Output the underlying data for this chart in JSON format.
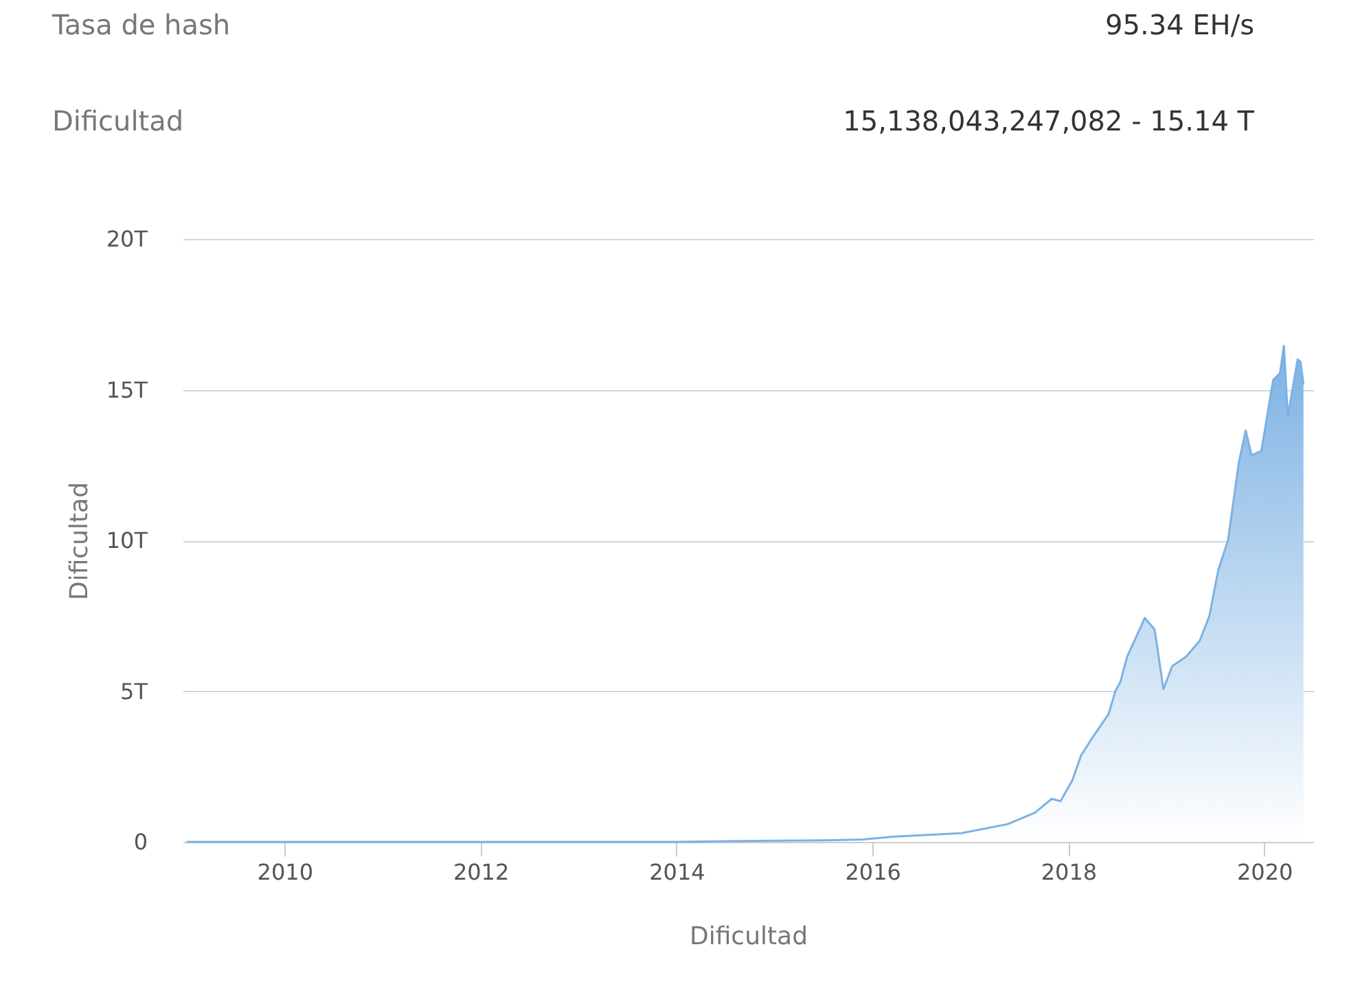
{
  "chart_data": {
    "type": "area",
    "xlabel": "Dificultad",
    "ylabel": "Dificultad",
    "annotations": [
      "Tasa de hash",
      "95.34 EH/s",
      "Dificultad",
      "15,138,043,247,082 - 15.14 T"
    ],
    "x": [
      2009.0,
      2010.0,
      2011.0,
      2012.0,
      2013.0,
      2014.0,
      2014.5,
      2015.0,
      2015.5,
      2015.9,
      2016.2,
      2016.5,
      2016.91,
      2017.38,
      2017.66,
      2017.83,
      2017.92,
      2018.04,
      2018.13,
      2018.25,
      2018.41,
      2018.48,
      2018.53,
      2018.6,
      2018.78,
      2018.88,
      2018.97,
      2019.06,
      2019.2,
      2019.34,
      2019.44,
      2019.53,
      2019.63,
      2019.74,
      2019.81,
      2019.87,
      2019.97,
      2020.09,
      2020.16,
      2020.2,
      2020.24,
      2020.34,
      2020.37,
      2020.4
    ],
    "series": [
      {
        "color": "#7cb1e3",
        "values": [
          0,
          0,
          0,
          0,
          0,
          0,
          0.02,
          0.04,
          0.05,
          0.08,
          0.17,
          0.22,
          0.29,
          0.59,
          0.97,
          1.43,
          1.35,
          2.04,
          2.87,
          3.48,
          4.24,
          5.0,
          5.3,
          6.14,
          7.43,
          7.05,
          5.07,
          5.83,
          6.14,
          6.67,
          7.5,
          9.02,
          10.01,
          12.59,
          13.65,
          12.82,
          12.97,
          15.32,
          15.55,
          16.46,
          14.11,
          16.0,
          15.93,
          15.17
        ]
      }
    ],
    "xlim": [
      2008.96,
      2020.5
    ],
    "xticks": [
      2010,
      2012,
      2014,
      2016,
      2018,
      2020
    ],
    "ylim": [
      0,
      20
    ],
    "yticks": [
      0,
      {
        "value": 5,
        "label": "5T"
      },
      {
        "value": 10,
        "label": "10T"
      },
      {
        "value": 15,
        "label": "15T"
      },
      {
        "value": 20,
        "label": "20T"
      }
    ],
    "grid": "y"
  }
}
